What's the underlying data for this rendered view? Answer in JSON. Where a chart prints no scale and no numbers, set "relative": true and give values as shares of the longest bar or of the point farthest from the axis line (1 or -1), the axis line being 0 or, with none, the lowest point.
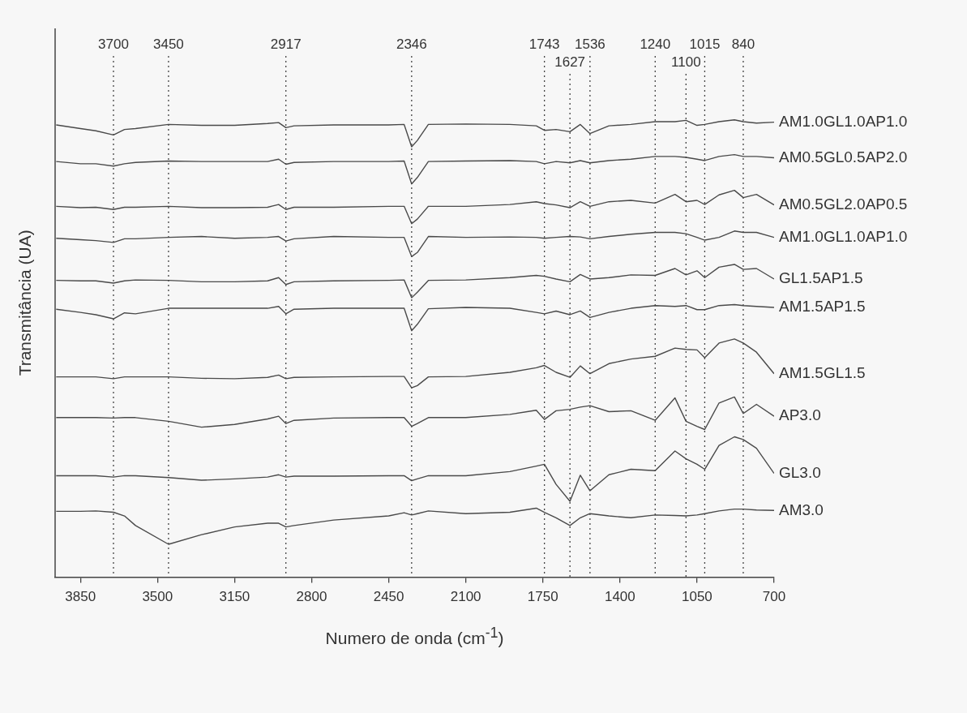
{
  "chart_data": {
    "type": "line",
    "relative": true,
    "xlabel": "Numero de onda (cm$^{-1}$)",
    "ylabel": "Transmitância (UA)",
    "x": [
      3960,
      3850,
      3780,
      3700,
      3650,
      3600,
      3450,
      3300,
      3150,
      3000,
      2950,
      2917,
      2880,
      2700,
      2450,
      2380,
      2346,
      2320,
      2270,
      2100,
      1900,
      1780,
      1743,
      1690,
      1627,
      1580,
      1536,
      1450,
      1350,
      1240,
      1150,
      1100,
      1050,
      1015,
      950,
      880,
      840,
      780,
      700
    ],
    "xlim": [
      3965,
      700
    ],
    "xticks": [
      3850,
      3500,
      3150,
      2800,
      2450,
      2100,
      1750,
      1400,
      1050,
      700
    ],
    "series": [
      {
        "name": "AM1.0GL1.0AP1.0",
        "color": "#4a4a4a",
        "values": [
          0.989,
          0.981,
          0.976,
          0.967,
          0.979,
          0.981,
          0.99,
          0.988,
          0.988,
          0.992,
          0.994,
          0.983,
          0.987,
          0.989,
          0.989,
          0.99,
          0.941,
          0.955,
          0.99,
          0.991,
          0.99,
          0.987,
          0.977,
          0.979,
          0.974,
          0.99,
          0.97,
          0.987,
          0.99,
          0.996,
          0.996,
          0.999,
          0.988,
          0.99,
          0.996,
          1.0,
          0.996,
          0.993,
          0.995
        ]
      },
      {
        "name": "AM0.5GL0.5AP2.0",
        "color": "#4a4a4a",
        "values": [
          0.909,
          0.904,
          0.904,
          0.899,
          0.904,
          0.907,
          0.91,
          0.909,
          0.909,
          0.909,
          0.914,
          0.903,
          0.907,
          0.909,
          0.909,
          0.91,
          0.86,
          0.874,
          0.909,
          0.91,
          0.911,
          0.909,
          0.904,
          0.909,
          0.906,
          0.911,
          0.906,
          0.911,
          0.914,
          0.92,
          0.92,
          0.918,
          0.914,
          0.911,
          0.92,
          0.924,
          0.92,
          0.92,
          0.917
        ]
      },
      {
        "name": "AM0.5GL2.0AP0.5",
        "color": "#4a4a4a",
        "values": [
          0.811,
          0.808,
          0.809,
          0.804,
          0.809,
          0.809,
          0.811,
          0.808,
          0.808,
          0.809,
          0.815,
          0.804,
          0.809,
          0.809,
          0.811,
          0.811,
          0.773,
          0.783,
          0.811,
          0.811,
          0.815,
          0.821,
          0.817,
          0.814,
          0.808,
          0.821,
          0.811,
          0.821,
          0.824,
          0.818,
          0.837,
          0.821,
          0.824,
          0.815,
          0.836,
          0.846,
          0.83,
          0.837,
          0.814
        ]
      },
      {
        "name": "AM1.0GL1.0AP1.0",
        "color": "#4a4a4a",
        "values": [
          0.741,
          0.738,
          0.736,
          0.732,
          0.74,
          0.74,
          0.743,
          0.745,
          0.741,
          0.743,
          0.745,
          0.735,
          0.74,
          0.745,
          0.743,
          0.743,
          0.701,
          0.71,
          0.745,
          0.743,
          0.744,
          0.743,
          0.741,
          0.743,
          0.745,
          0.744,
          0.74,
          0.745,
          0.75,
          0.754,
          0.754,
          0.751,
          0.743,
          0.737,
          0.743,
          0.757,
          0.754,
          0.754,
          0.743
        ]
      },
      {
        "name": "GL1.5AP1.5",
        "color": "#4a4a4a",
        "values": [
          0.649,
          0.648,
          0.648,
          0.643,
          0.648,
          0.65,
          0.649,
          0.646,
          0.646,
          0.648,
          0.655,
          0.64,
          0.646,
          0.648,
          0.649,
          0.65,
          0.611,
          0.623,
          0.649,
          0.65,
          0.655,
          0.66,
          0.658,
          0.652,
          0.646,
          0.662,
          0.652,
          0.655,
          0.661,
          0.66,
          0.675,
          0.661,
          0.67,
          0.655,
          0.678,
          0.684,
          0.673,
          0.675,
          0.652
        ]
      },
      {
        "name": "AM1.5AP1.5",
        "color": "#4a4a4a",
        "values": [
          0.586,
          0.579,
          0.574,
          0.565,
          0.578,
          0.576,
          0.588,
          0.588,
          0.588,
          0.588,
          0.592,
          0.576,
          0.586,
          0.588,
          0.588,
          0.588,
          0.539,
          0.553,
          0.587,
          0.59,
          0.588,
          0.579,
          0.576,
          0.582,
          0.574,
          0.582,
          0.568,
          0.579,
          0.588,
          0.594,
          0.592,
          0.594,
          0.585,
          0.585,
          0.594,
          0.596,
          0.594,
          0.592,
          0.59
        ]
      },
      {
        "name": "AM1.5GL1.5",
        "color": "#4a4a4a",
        "values": [
          0.438,
          0.438,
          0.438,
          0.434,
          0.438,
          0.438,
          0.438,
          0.435,
          0.434,
          0.437,
          0.442,
          0.434,
          0.437,
          0.438,
          0.439,
          0.439,
          0.414,
          0.419,
          0.438,
          0.439,
          0.448,
          0.458,
          0.463,
          0.448,
          0.437,
          0.462,
          0.445,
          0.467,
          0.477,
          0.483,
          0.501,
          0.498,
          0.497,
          0.48,
          0.512,
          0.521,
          0.512,
          0.492,
          0.445
        ]
      },
      {
        "name": "AP3.0",
        "color": "#4a4a4a",
        "values": [
          0.349,
          0.349,
          0.349,
          0.348,
          0.349,
          0.349,
          0.341,
          0.328,
          0.334,
          0.346,
          0.352,
          0.336,
          0.343,
          0.348,
          0.349,
          0.349,
          0.33,
          0.336,
          0.349,
          0.349,
          0.356,
          0.365,
          0.345,
          0.364,
          0.367,
          0.372,
          0.375,
          0.362,
          0.364,
          0.343,
          0.392,
          0.341,
          0.33,
          0.323,
          0.381,
          0.394,
          0.358,
          0.378,
          0.352
        ]
      },
      {
        "name": "GL3.0",
        "color": "#4a4a4a",
        "values": [
          0.222,
          0.222,
          0.222,
          0.219,
          0.222,
          0.222,
          0.218,
          0.212,
          0.215,
          0.219,
          0.224,
          0.219,
          0.221,
          0.221,
          0.222,
          0.222,
          0.211,
          0.215,
          0.222,
          0.222,
          0.231,
          0.243,
          0.247,
          0.203,
          0.166,
          0.223,
          0.189,
          0.224,
          0.236,
          0.233,
          0.276,
          0.259,
          0.247,
          0.236,
          0.288,
          0.307,
          0.301,
          0.282,
          0.227
        ]
      },
      {
        "name": "AM3.0",
        "color": "#4a4a4a",
        "values": [
          0.144,
          0.144,
          0.145,
          0.142,
          0.134,
          0.113,
          0.072,
          0.093,
          0.11,
          0.118,
          0.118,
          0.11,
          0.113,
          0.125,
          0.134,
          0.141,
          0.136,
          0.139,
          0.145,
          0.139,
          0.142,
          0.151,
          0.142,
          0.13,
          0.113,
          0.13,
          0.139,
          0.134,
          0.13,
          0.136,
          0.135,
          0.134,
          0.136,
          0.139,
          0.145,
          0.149,
          0.149,
          0.147,
          0.146
        ]
      }
    ],
    "ref_lines": [
      {
        "axis": "x",
        "value": 3700,
        "label": "3700",
        "line_style": "dotted"
      },
      {
        "axis": "x",
        "value": 3450,
        "label": "3450",
        "line_style": "dotted"
      },
      {
        "axis": "x",
        "value": 2917,
        "label": "2917",
        "line_style": "dotted"
      },
      {
        "axis": "x",
        "value": 2346,
        "label": "2346",
        "line_style": "dotted"
      },
      {
        "axis": "x",
        "value": 1743,
        "label": "1743",
        "line_style": "dotted"
      },
      {
        "axis": "x",
        "value": 1627,
        "label": "1627",
        "line_style": "dotted"
      },
      {
        "axis": "x",
        "value": 1536,
        "label": "1536",
        "line_style": "dotted"
      },
      {
        "axis": "x",
        "value": 1240,
        "label": "1240",
        "line_style": "dotted"
      },
      {
        "axis": "x",
        "value": 1100,
        "label": "1100",
        "line_style": "dotted"
      },
      {
        "axis": "x",
        "value": 1015,
        "label": "1015",
        "line_style": "dotted"
      },
      {
        "axis": "x",
        "value": 840,
        "label": "840",
        "line_style": "dotted"
      }
    ]
  }
}
